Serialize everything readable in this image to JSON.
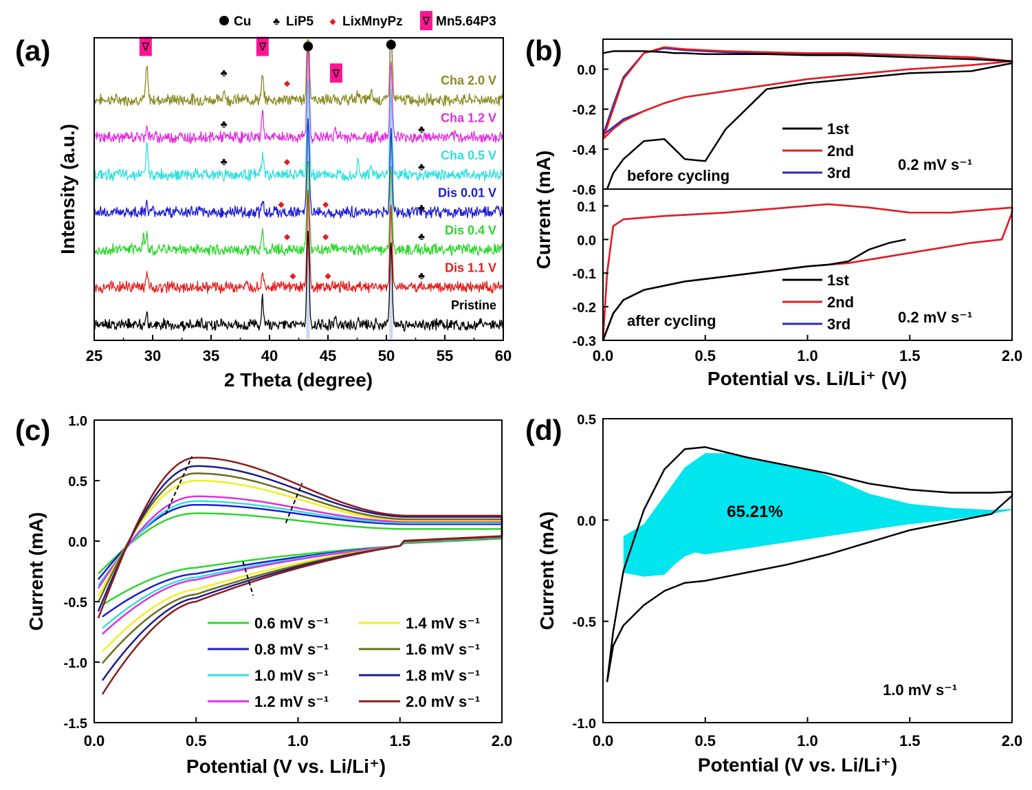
{
  "chart_data": [
    {
      "id": "a",
      "type": "line",
      "panel_label": "(a)",
      "xlabel": "2 Theta (degree)",
      "ylabel": "Intensity (a.u.)",
      "xlim": [
        25,
        60
      ],
      "xticks": [
        25,
        30,
        35,
        40,
        45,
        50,
        55,
        60
      ],
      "legend_top": [
        {
          "symbol": "circle",
          "label": "Cu",
          "color": "#000000"
        },
        {
          "symbol": "club",
          "label": "LiP5",
          "color": "#000000"
        },
        {
          "symbol": "diamond",
          "label": "LixMnyPz",
          "color": "#e81c1c"
        },
        {
          "symbol": "box",
          "label": "Mn5.64P3",
          "color": "#ff1493"
        }
      ],
      "reference_lines": [
        43.3,
        50.4
      ],
      "series": [
        {
          "name": "Cha 2.0 V",
          "color": "#8a8a22",
          "offset": 6,
          "peaks": [
            [
              29.5,
              6
            ],
            [
              36.1,
              1.8
            ],
            [
              39.4,
              4
            ],
            [
              43.3,
              16
            ],
            [
              47.6,
              1.5
            ],
            [
              48.7,
              1.2
            ],
            [
              50.4,
              14
            ]
          ]
        },
        {
          "name": "Cha 1.2 V",
          "color": "#e02fe0",
          "offset": 5,
          "peaks": [
            [
              29.5,
              2
            ],
            [
              39.4,
              4.5
            ],
            [
              43.3,
              16
            ],
            [
              45.6,
              1.6
            ],
            [
              50.4,
              14
            ]
          ]
        },
        {
          "name": "Cha 0.5 V",
          "color": "#2fe0e0",
          "offset": 4,
          "peaks": [
            [
              29.5,
              5
            ],
            [
              39.4,
              3.5
            ],
            [
              43.3,
              16
            ],
            [
              47.6,
              2.5
            ],
            [
              48.7,
              1.2
            ],
            [
              50.4,
              14
            ]
          ]
        },
        {
          "name": "Dis 0.01 V",
          "color": "#1c1cd6",
          "offset": 3,
          "peaks": [
            [
              29.5,
              1.5
            ],
            [
              39.4,
              2.2
            ],
            [
              43.3,
              16
            ],
            [
              50.4,
              14
            ]
          ]
        },
        {
          "name": "Dis 0.4 V",
          "color": "#2fd62f",
          "offset": 2,
          "peaks": [
            [
              29.2,
              2
            ],
            [
              29.5,
              3
            ],
            [
              39.4,
              3
            ],
            [
              43.3,
              16
            ],
            [
              50.4,
              14
            ]
          ]
        },
        {
          "name": "Dis 1.1 V",
          "color": "#e81c1c",
          "offset": 1,
          "peaks": [
            [
              29.5,
              2.2
            ],
            [
              39.4,
              2.8
            ],
            [
              43.3,
              16
            ],
            [
              50.4,
              14
            ]
          ]
        },
        {
          "name": "Pristine",
          "color": "#000000",
          "offset": 0,
          "peaks": [
            [
              29.5,
              2.2
            ],
            [
              39.4,
              4.5
            ],
            [
              43.3,
              16
            ],
            [
              45.6,
              1.2
            ],
            [
              47.6,
              1
            ],
            [
              50.4,
              14
            ]
          ]
        }
      ],
      "markers": [
        {
          "type": "box",
          "x": 29.4,
          "series": "Cha 2.0 V",
          "dy": 3.1
        },
        {
          "type": "box",
          "x": 39.4,
          "series": "Cha 2.0 V",
          "dy": 3.1
        },
        {
          "type": "box",
          "x": 45.7,
          "series": "Cha 2.0 V",
          "dy": 1.55
        },
        {
          "type": "circle",
          "x": 43.3,
          "series": "Cha 2.0 V",
          "dy": 3.1
        },
        {
          "type": "circle",
          "x": 50.4,
          "series": "Cha 2.0 V",
          "dy": 3.2
        },
        {
          "type": "club",
          "x": 36.1,
          "series": "Cha 2.0 V",
          "dy": 1.6
        },
        {
          "type": "diamond",
          "x": 41.5,
          "series": "Cha 2.0 V",
          "dy": 1.0
        },
        {
          "type": "club",
          "x": 36.1,
          "series": "Cha 1.2 V",
          "dy": 0.8
        },
        {
          "type": "club",
          "x": 53.0,
          "series": "Cha 1.2 V",
          "dy": 0.5
        },
        {
          "type": "club",
          "x": 36.1,
          "series": "Cha 0.5 V",
          "dy": 0.8
        },
        {
          "type": "diamond",
          "x": 41.5,
          "series": "Cha 0.5 V",
          "dy": 0.8
        },
        {
          "type": "club",
          "x": 53.0,
          "series": "Cha 0.5 V",
          "dy": 0.5
        },
        {
          "type": "diamond",
          "x": 41.0,
          "series": "Dis 0.01 V",
          "dy": 0.5
        },
        {
          "type": "diamond",
          "x": 44.8,
          "series": "Dis 0.01 V",
          "dy": 0.5
        },
        {
          "type": "club",
          "x": 53.0,
          "series": "Dis 0.01 V",
          "dy": 0.3
        },
        {
          "type": "diamond",
          "x": 41.5,
          "series": "Dis 0.4 V",
          "dy": 0.8
        },
        {
          "type": "diamond",
          "x": 44.8,
          "series": "Dis 0.4 V",
          "dy": 0.8
        },
        {
          "type": "club",
          "x": 53.0,
          "series": "Dis 0.4 V",
          "dy": 0.8
        },
        {
          "type": "diamond",
          "x": 42.0,
          "series": "Dis 1.1 V",
          "dy": 0.7
        },
        {
          "type": "diamond",
          "x": 45.0,
          "series": "Dis 1.1 V",
          "dy": 0.7
        },
        {
          "type": "club",
          "x": 53.0,
          "series": "Dis 1.1 V",
          "dy": 0.7
        }
      ]
    },
    {
      "id": "b_top",
      "type": "line",
      "panel_label": "(b)",
      "annotation": "before cycling",
      "rate": "0.2 mV s⁻¹",
      "xlim": [
        0,
        2
      ],
      "ylim": [
        -0.6,
        0.15
      ],
      "yticks": [
        0.0,
        -0.2,
        -0.4,
        -0.6
      ],
      "legend": [
        "1st",
        "2nd",
        "3rd"
      ],
      "series": [
        {
          "name": "1st",
          "color": "#000000",
          "x": [
            0.0,
            0.05,
            0.1,
            0.2,
            0.3,
            0.35,
            0.4,
            0.5,
            0.55,
            0.6,
            0.7,
            0.8,
            1.0,
            1.2,
            1.5,
            1.8,
            2.0,
            2.0,
            1.8,
            1.5,
            1.2,
            1.0,
            0.8,
            0.6,
            0.5,
            0.4,
            0.3,
            0.2,
            0.1,
            0.05,
            0.02
          ],
          "y": [
            0.08,
            0.09,
            0.09,
            0.09,
            0.085,
            0.08,
            0.08,
            0.075,
            0.075,
            0.075,
            0.075,
            0.075,
            0.07,
            0.07,
            0.06,
            0.05,
            0.04,
            0.03,
            -0.01,
            -0.02,
            -0.05,
            -0.07,
            -0.1,
            -0.3,
            -0.46,
            -0.45,
            -0.35,
            -0.36,
            -0.45,
            -0.52,
            -0.6
          ]
        },
        {
          "name": "2nd",
          "color": "#e81c1c",
          "x": [
            0.0,
            0.05,
            0.1,
            0.2,
            0.3,
            0.4,
            0.6,
            0.8,
            1.0,
            1.2,
            1.5,
            1.8,
            2.0,
            2.0,
            1.8,
            1.5,
            1.2,
            1.0,
            0.8,
            0.6,
            0.4,
            0.3,
            0.2,
            0.1,
            0.05,
            0.0
          ],
          "y": [
            -0.35,
            -0.2,
            -0.05,
            0.08,
            0.11,
            0.1,
            0.09,
            0.085,
            0.08,
            0.08,
            0.07,
            0.06,
            0.04,
            0.04,
            0.02,
            0.0,
            -0.03,
            -0.05,
            -0.08,
            -0.11,
            -0.14,
            -0.17,
            -0.21,
            -0.26,
            -0.3,
            -0.35
          ]
        },
        {
          "name": "3rd",
          "color": "#2a2ab8",
          "x": [
            0.0,
            0.05,
            0.1,
            0.2,
            0.3,
            0.4,
            0.6,
            0.8,
            1.0,
            1.2,
            1.5,
            1.8,
            2.0,
            2.0,
            1.8,
            1.5,
            1.2,
            1.0,
            0.8,
            0.6,
            0.4,
            0.3,
            0.2,
            0.1,
            0.05,
            0.0
          ],
          "y": [
            -0.33,
            -0.18,
            -0.04,
            0.08,
            0.105,
            0.095,
            0.085,
            0.08,
            0.075,
            0.075,
            0.07,
            0.06,
            0.04,
            0.04,
            0.02,
            0.0,
            -0.03,
            -0.05,
            -0.08,
            -0.11,
            -0.14,
            -0.17,
            -0.21,
            -0.25,
            -0.29,
            -0.33
          ]
        }
      ]
    },
    {
      "id": "b_bottom",
      "type": "line",
      "annotation": "after cycling",
      "rate": "0.2 mV s⁻¹",
      "xlabel": "Potential vs. Li/Li⁺ (V)",
      "ylabel": "Current (mA)",
      "xlim": [
        0,
        2
      ],
      "xticks": [
        0.0,
        0.5,
        1.0,
        1.5,
        2.0
      ],
      "ylim": [
        -0.3,
        0.15
      ],
      "yticks": [
        0.1,
        0.0,
        -0.1,
        -0.2,
        -0.3
      ],
      "legend": [
        "1st",
        "2nd",
        "3rd"
      ],
      "series": [
        {
          "name": "1st",
          "color": "#000000",
          "x": [
            1.48,
            1.4,
            1.3,
            1.2,
            1.1,
            1.0,
            0.8,
            0.6,
            0.4,
            0.2,
            0.1,
            0.05,
            0.0
          ],
          "y": [
            0.0,
            -0.01,
            -0.03,
            -0.065,
            -0.075,
            -0.08,
            -0.095,
            -0.11,
            -0.125,
            -0.15,
            -0.18,
            -0.22,
            -0.3
          ]
        },
        {
          "name": "2nd",
          "color": "#e81c1c",
          "x": [
            0.0,
            0.02,
            0.05,
            0.1,
            0.3,
            0.6,
            0.9,
            1.1,
            1.3,
            1.5,
            1.7,
            1.9,
            2.0,
            2.0,
            1.95,
            1.8,
            1.5,
            1.2,
            1.0,
            0.8,
            0.6,
            0.4,
            0.2,
            0.1,
            0.05,
            0.0
          ],
          "y": [
            -0.3,
            -0.1,
            0.04,
            0.06,
            0.07,
            0.08,
            0.095,
            0.105,
            0.095,
            0.08,
            0.08,
            0.09,
            0.095,
            0.08,
            0.0,
            -0.01,
            -0.04,
            -0.07,
            -0.08,
            -0.095,
            -0.11,
            -0.125,
            -0.15,
            -0.18,
            -0.22,
            -0.3
          ]
        },
        {
          "name": "3rd",
          "color": "#2a2ab8",
          "x": [
            0.0,
            0.02,
            0.05,
            0.1,
            0.3,
            0.6,
            0.9,
            1.1,
            1.3,
            1.5,
            1.7,
            1.9,
            2.0,
            2.0,
            1.95,
            1.8,
            1.5,
            1.2,
            1.0,
            0.8,
            0.6,
            0.4,
            0.2,
            0.1,
            0.05,
            0.0
          ],
          "y": [
            -0.3,
            -0.1,
            0.04,
            0.06,
            0.07,
            0.08,
            0.095,
            0.105,
            0.095,
            0.08,
            0.08,
            0.09,
            0.095,
            0.08,
            0.0,
            -0.01,
            -0.04,
            -0.07,
            -0.08,
            -0.095,
            -0.11,
            -0.125,
            -0.15,
            -0.18,
            -0.22,
            -0.3
          ]
        }
      ]
    },
    {
      "id": "c",
      "type": "line",
      "panel_label": "(c)",
      "xlabel": "Potential (V vs. Li/Li⁺)",
      "ylabel": "Current (mA)",
      "xlim": [
        0,
        2
      ],
      "xticks": [
        0.0,
        0.5,
        1.0,
        1.5,
        2.0
      ],
      "ylim": [
        -1.5,
        1.0
      ],
      "yticks": [
        1.0,
        0.5,
        0.0,
        -0.5,
        -1.0,
        -1.5
      ],
      "series": [
        {
          "name": "0.6 mV s⁻¹",
          "color": "#2fd62f",
          "peak_ox": 0.23,
          "tail_ox": 0.1,
          "peak_red": -0.55,
          "mid_red": -0.22
        },
        {
          "name": "0.8 mV s⁻¹",
          "color": "#1c1cd6",
          "peak_ox": 0.3,
          "tail_ox": 0.14,
          "peak_red": -0.65,
          "mid_red": -0.27
        },
        {
          "name": "1.0 mV s⁻¹",
          "color": "#2fe0e0",
          "peak_ox": 0.33,
          "tail_ox": 0.15,
          "peak_red": -0.75,
          "mid_red": -0.3
        },
        {
          "name": "1.2 mV s⁻¹",
          "color": "#e02fe0",
          "peak_ox": 0.37,
          "tail_ox": 0.16,
          "peak_red": -0.8,
          "mid_red": -0.32
        },
        {
          "name": "1.4 mV s⁻¹",
          "color": "#f0f020",
          "peak_ox": 0.5,
          "tail_ox": 0.17,
          "peak_red": -0.95,
          "mid_red": -0.4
        },
        {
          "name": "1.6 mV s⁻¹",
          "color": "#6b6b1c",
          "peak_ox": 0.56,
          "tail_ox": 0.18,
          "peak_red": -1.05,
          "mid_red": -0.44
        },
        {
          "name": "1.8 mV s⁻¹",
          "color": "#1c1c8a",
          "peak_ox": 0.62,
          "tail_ox": 0.2,
          "peak_red": -1.2,
          "mid_red": -0.47
        },
        {
          "name": "2.0 mV s⁻¹",
          "color": "#8a1c1c",
          "peak_ox": 0.69,
          "tail_ox": 0.21,
          "peak_red": -1.32,
          "mid_red": -0.5
        }
      ]
    },
    {
      "id": "d",
      "type": "area",
      "panel_label": "(d)",
      "xlabel": "Potential (V vs. Li/Li⁺)",
      "ylabel": "Current (mA)",
      "xlim": [
        0,
        2
      ],
      "xticks": [
        0.0,
        0.5,
        1.0,
        1.5,
        2.0
      ],
      "ylim": [
        -1.0,
        0.5
      ],
      "yticks": [
        0.5,
        0.0,
        -0.5,
        -1.0
      ],
      "annotation": "65.21%",
      "rate": "1.0 mV s⁻¹",
      "fill_color": "#00e5ee",
      "outline": {
        "x": [
          0.02,
          0.05,
          0.1,
          0.2,
          0.3,
          0.4,
          0.5,
          0.7,
          0.9,
          1.0,
          1.1,
          1.3,
          1.5,
          1.7,
          1.9,
          2.0,
          2.0,
          1.9,
          1.7,
          1.5,
          1.3,
          1.1,
          0.9,
          0.7,
          0.5,
          0.4,
          0.3,
          0.2,
          0.1,
          0.05,
          0.02
        ],
        "y": [
          -0.8,
          -0.55,
          -0.25,
          0.05,
          0.25,
          0.35,
          0.36,
          0.31,
          0.27,
          0.25,
          0.23,
          0.18,
          0.15,
          0.135,
          0.135,
          0.14,
          0.12,
          0.03,
          -0.01,
          -0.05,
          -0.11,
          -0.17,
          -0.22,
          -0.26,
          -0.3,
          -0.31,
          -0.35,
          -0.42,
          -0.52,
          -0.62,
          -0.8
        ]
      },
      "capacitive": {
        "x": [
          0.1,
          0.2,
          0.3,
          0.4,
          0.5,
          0.6,
          0.8,
          1.0,
          1.1,
          1.3,
          1.5,
          1.7,
          1.9,
          2.0,
          2.0,
          1.9,
          1.7,
          1.5,
          1.3,
          1.1,
          0.9,
          0.7,
          0.5,
          0.45,
          0.4,
          0.35,
          0.3,
          0.2,
          0.1
        ],
        "y": [
          -0.08,
          -0.02,
          0.12,
          0.26,
          0.33,
          0.33,
          0.29,
          0.25,
          0.22,
          0.13,
          0.08,
          0.06,
          0.05,
          0.055,
          0.05,
          0.03,
          0.0,
          -0.02,
          -0.05,
          -0.08,
          -0.11,
          -0.14,
          -0.17,
          -0.16,
          -0.18,
          -0.22,
          -0.27,
          -0.28,
          -0.26
        ]
      }
    }
  ]
}
